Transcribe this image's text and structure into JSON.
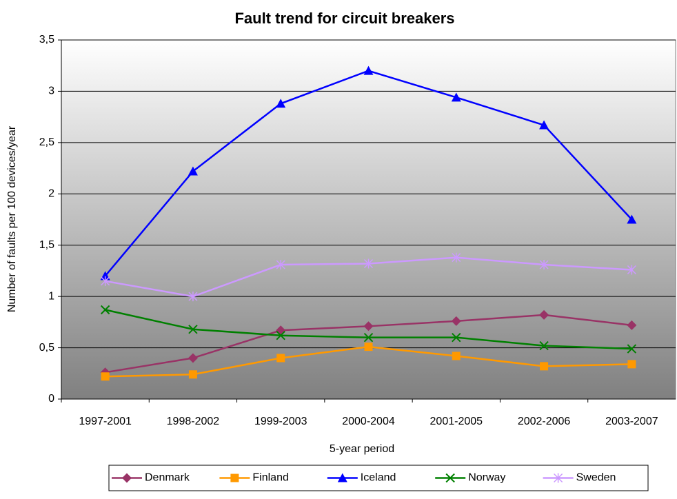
{
  "chart_data": {
    "type": "line",
    "title": "Fault trend for circuit breakers",
    "x_label": "5-year period",
    "y_label": "Number of faults per 100 devices/year",
    "categories": [
      "1997-2001",
      "1998-2002",
      "1999-2003",
      "2000-2004",
      "2001-2005",
      "2002-2006",
      "2003-2007"
    ],
    "series": [
      {
        "name": "Denmark",
        "color": "#993366",
        "marker": "diamond",
        "values": [
          0.26,
          0.4,
          0.67,
          0.71,
          0.76,
          0.82,
          0.72
        ]
      },
      {
        "name": "Finland",
        "color": "#ff9900",
        "marker": "square",
        "values": [
          0.22,
          0.24,
          0.4,
          0.51,
          0.42,
          0.32,
          0.34
        ]
      },
      {
        "name": "Iceland",
        "color": "#0000ff",
        "marker": "triangle",
        "values": [
          1.2,
          2.22,
          2.88,
          3.2,
          2.94,
          2.67,
          1.75
        ]
      },
      {
        "name": "Norway",
        "color": "#008000",
        "marker": "x",
        "values": [
          0.87,
          0.68,
          0.62,
          0.6,
          0.6,
          0.52,
          0.49
        ]
      },
      {
        "name": "Sweden",
        "color": "#cc99ff",
        "marker": "star",
        "values": [
          1.15,
          1.0,
          1.31,
          1.32,
          1.38,
          1.31,
          1.26
        ]
      }
    ],
    "ylim": [
      0,
      3.5
    ],
    "yticks": [
      0,
      {
        "value": 0.5,
        "label": "0,5"
      },
      1,
      {
        "value": 1.5,
        "label": "1,5"
      },
      2,
      {
        "value": 2.5,
        "label": "2,5"
      },
      3,
      {
        "value": 3.5,
        "label": "3,5"
      }
    ],
    "grid": true,
    "legend": "bottom"
  }
}
